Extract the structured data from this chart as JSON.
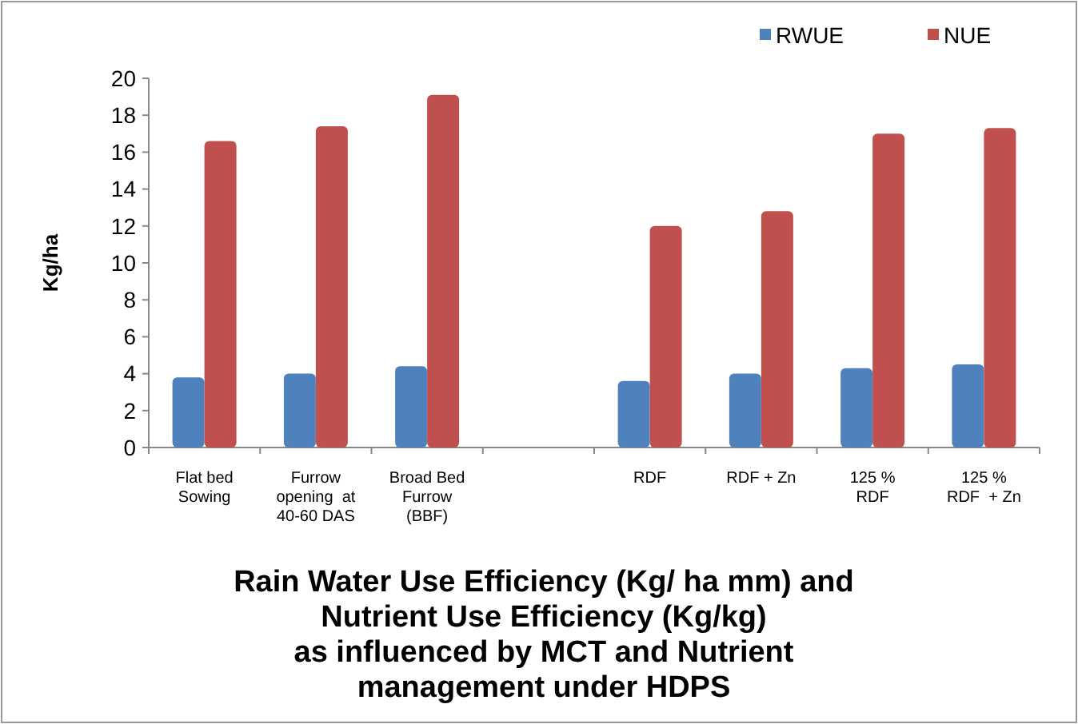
{
  "chart_data": {
    "type": "bar",
    "title": "Rain Water Use Efficiency (Kg/ ha mm) and\nNutrient Use Efficiency (Kg/kg)\nas influenced by MCT and Nutrient\nmanagement under HDPS",
    "ylabel": "Kg/ha",
    "categories": [
      "Flat bed\nSowing",
      "Furrow\nopening  at\n40-60 DAS",
      "Broad Bed\nFurrow\n(BBF)",
      null,
      "RDF",
      "RDF + Zn",
      "125 %\nRDF",
      "125 %\nRDF  + Zn"
    ],
    "series": [
      {
        "name": "RWUE",
        "color": "#4f81bd",
        "values": [
          3.8,
          4.0,
          4.4,
          null,
          3.6,
          4.0,
          4.3,
          4.5
        ]
      },
      {
        "name": "NUE",
        "color": "#c0504d",
        "values": [
          16.6,
          17.4,
          19.1,
          null,
          12.0,
          12.8,
          17.0,
          17.3
        ]
      }
    ],
    "ylim": [
      0,
      20
    ],
    "yticks": [
      0,
      2,
      4,
      6,
      8,
      10,
      12,
      14,
      16,
      18,
      20
    ],
    "grid": false,
    "legend": "top right"
  }
}
